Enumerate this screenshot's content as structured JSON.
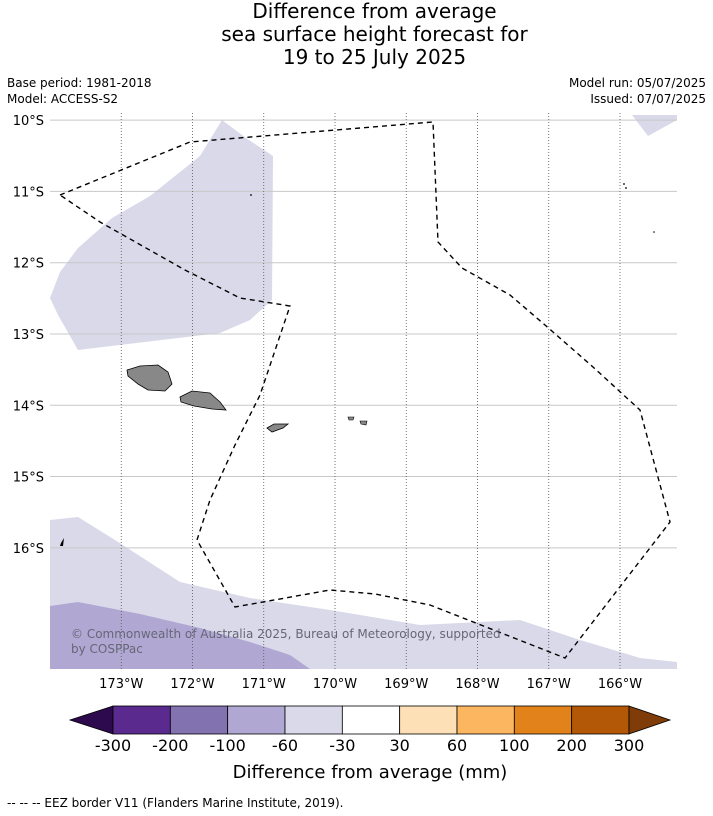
{
  "title": {
    "line1": "Difference from average",
    "line2": "sea surface height forecast for",
    "line3": "19 to 25 July 2025"
  },
  "meta_left": {
    "base_period": "Base period: 1981-2018",
    "model": "Model: ACCESS-S2"
  },
  "meta_right": {
    "model_run": "Model run: 05/07/2025",
    "issued": "Issued: 07/07/2025"
  },
  "map": {
    "lon_range": [
      -174.0,
      -165.2
    ],
    "lat_range": [
      -17.7,
      -9.9
    ],
    "lat_ticks": [
      {
        "value": -10,
        "label": "10°S"
      },
      {
        "value": -11,
        "label": "11°S"
      },
      {
        "value": -12,
        "label": "12°S"
      },
      {
        "value": -13,
        "label": "13°S"
      },
      {
        "value": -14,
        "label": "14°S"
      },
      {
        "value": -15,
        "label": "15°S"
      },
      {
        "value": -16,
        "label": "16°S"
      }
    ],
    "lon_ticks": [
      {
        "value": -173,
        "label": "173°W"
      },
      {
        "value": -172,
        "label": "172°W"
      },
      {
        "value": -171,
        "label": "171°W"
      },
      {
        "value": -170,
        "label": "170°W"
      },
      {
        "value": -169,
        "label": "169°W"
      },
      {
        "value": -168,
        "label": "168°W"
      },
      {
        "value": -167,
        "label": "167°W"
      },
      {
        "value": -166,
        "label": "166°W"
      }
    ],
    "copyright": "© Commonwealth of Australia 2025, Bureau of Meteorology, supported by COSPPac",
    "copyright_line1": "© Commonwealth of Australia 2025, Bureau of Meteorology, supported",
    "copyright_line2": "by COSPPac"
  },
  "colorbar": {
    "label": "Difference from average (mm)",
    "ticks": [
      "-300",
      "-200",
      "-100",
      "-60",
      "-30",
      "30",
      "60",
      "100",
      "200",
      "300"
    ],
    "colors": [
      "#2d0a4e",
      "#5b2a8f",
      "#8272b0",
      "#b0a8d2",
      "#d9d9ea",
      "#ffffff",
      "#fde0b5",
      "#fbb65f",
      "#e2821a",
      "#b35806",
      "#7f3b08"
    ]
  },
  "footer": "--  --  -- EEZ border V11 (Flanders Marine Institute, 2019)."
}
